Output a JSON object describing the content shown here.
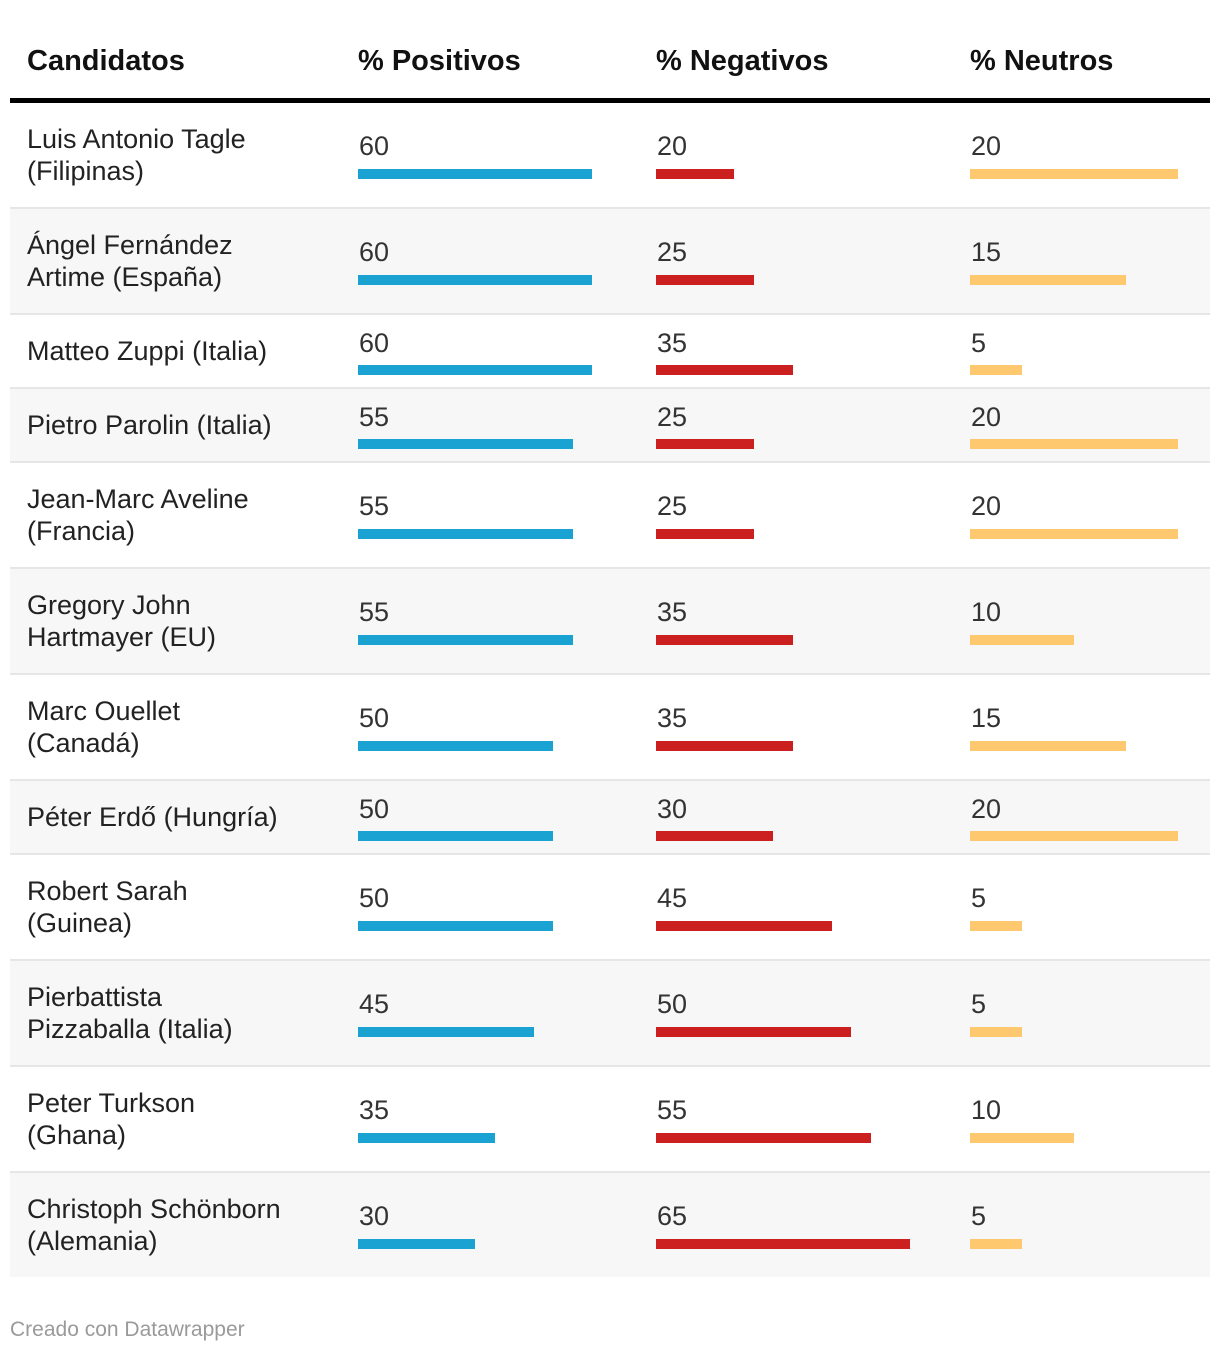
{
  "chart_data": {
    "type": "table",
    "columns": [
      "Candidatos",
      "% Positivos",
      "% Negativos",
      "% Neutros"
    ],
    "rows": [
      {
        "name": "Luis Antonio Tagle (Filipinas)",
        "lines": [
          "Luis Antonio Tagle",
          "(Filipinas)"
        ],
        "positivos": 60,
        "negativos": 20,
        "neutros": 20
      },
      {
        "name": "Ángel Fernández Artime (España)",
        "lines": [
          "Ángel Fernández",
          "Artime (España)"
        ],
        "positivos": 60,
        "negativos": 25,
        "neutros": 15
      },
      {
        "name": "Matteo Zuppi (Italia)",
        "lines": [
          "Matteo Zuppi (Italia)"
        ],
        "positivos": 60,
        "negativos": 35,
        "neutros": 5
      },
      {
        "name": "Pietro Parolin (Italia)",
        "lines": [
          "Pietro Parolin (Italia)"
        ],
        "positivos": 55,
        "negativos": 25,
        "neutros": 20
      },
      {
        "name": "Jean-Marc Aveline (Francia)",
        "lines": [
          "Jean-Marc Aveline",
          "(Francia)"
        ],
        "positivos": 55,
        "negativos": 25,
        "neutros": 20
      },
      {
        "name": "Gregory John Hartmayer (EU)",
        "lines": [
          "Gregory John",
          "Hartmayer (EU)"
        ],
        "positivos": 55,
        "negativos": 35,
        "neutros": 10
      },
      {
        "name": "Marc Ouellet (Canadá)",
        "lines": [
          "Marc Ouellet",
          "(Canadá)"
        ],
        "positivos": 50,
        "negativos": 35,
        "neutros": 15
      },
      {
        "name": "Péter Erdő (Hungría)",
        "lines": [
          "Péter Erdő (Hungría)"
        ],
        "positivos": 50,
        "negativos": 30,
        "neutros": 20
      },
      {
        "name": "Robert Sarah (Guinea)",
        "lines": [
          "Robert Sarah",
          "(Guinea)"
        ],
        "positivos": 50,
        "negativos": 45,
        "neutros": 5
      },
      {
        "name": "Pierbattista Pizzaballa (Italia)",
        "lines": [
          "Pierbattista",
          "Pizzaballa (Italia)"
        ],
        "positivos": 45,
        "negativos": 50,
        "neutros": 5
      },
      {
        "name": "Peter Turkson (Ghana)",
        "lines": [
          "Peter Turkson",
          "(Ghana)"
        ],
        "positivos": 35,
        "negativos": 55,
        "neutros": 10
      },
      {
        "name": "Christoph Schönborn (Alemania)",
        "lines": [
          "Christoph Schönborn",
          "(Alemania)"
        ],
        "positivos": 30,
        "negativos": 65,
        "neutros": 5
      }
    ],
    "colors": {
      "positivos": "#1aa3d2",
      "negativos": "#cc1f1f",
      "neutros": "#fec86f"
    }
  },
  "footer": {
    "credit": "Creado con Datawrapper"
  }
}
